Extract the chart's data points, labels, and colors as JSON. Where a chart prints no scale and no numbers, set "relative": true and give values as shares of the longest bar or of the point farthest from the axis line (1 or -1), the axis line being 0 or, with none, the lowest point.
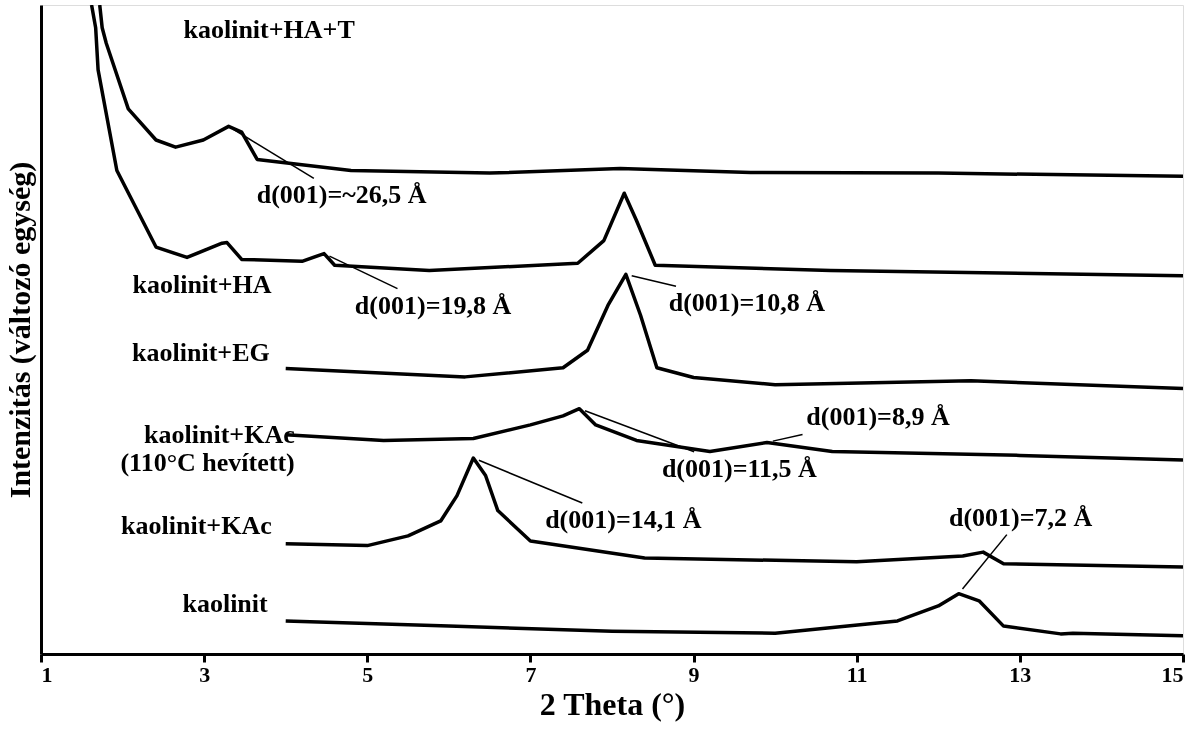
{
  "chart_data": {
    "type": "line",
    "relative": true,
    "xlabel": "2 Theta (°)",
    "ylabel": "Intenzitás (változó egység)",
    "xlim": [
      1,
      15
    ],
    "xticks": [
      1,
      3,
      5,
      7,
      9,
      11,
      13,
      15
    ],
    "tick_labels": "x",
    "grid": false,
    "marker": "none",
    "line_style": "solid",
    "series": [
      {
        "name": "kaolinit",
        "color": "#000000",
        "x": [
          4,
          6,
          8,
          10,
          11.5,
          12,
          12.25,
          12.5,
          12.8,
          13.5,
          13.65,
          15
        ],
        "values": [
          0.051,
          0.043,
          0.035,
          0.032,
          0.051,
          0.074,
          0.093,
          0.082,
          0.043,
          0.031,
          0.032,
          0.028
        ]
      },
      {
        "name": "kaolinit+KAc",
        "color": "#000000",
        "x": [
          4,
          5,
          5.5,
          5.9,
          6.1,
          6.3,
          6.45,
          6.6,
          7,
          8.4,
          11,
          12.3,
          12.55,
          12.8,
          15
        ],
        "values": [
          0.17,
          0.167,
          0.182,
          0.205,
          0.244,
          0.302,
          0.275,
          0.221,
          0.174,
          0.148,
          0.142,
          0.151,
          0.157,
          0.139,
          0.134
        ]
      },
      {
        "name": "kaolinit+KAc\n(110°C hevített)",
        "color": "#000000",
        "x": [
          4,
          5.2,
          6.3,
          7,
          7.4,
          7.6,
          7.8,
          8.3,
          9.2,
          9.9,
          10.7,
          13,
          15
        ],
        "values": [
          0.338,
          0.329,
          0.332,
          0.353,
          0.367,
          0.378,
          0.353,
          0.329,
          0.312,
          0.326,
          0.312,
          0.306,
          0.299
        ]
      },
      {
        "name": "kaolinit+EG",
        "color": "#000000",
        "x": [
          4,
          6.2,
          7.4,
          7.7,
          7.95,
          8.17,
          8.35,
          8.55,
          9,
          10,
          12.4,
          15
        ],
        "values": [
          0.44,
          0.427,
          0.441,
          0.468,
          0.537,
          0.585,
          0.522,
          0.441,
          0.426,
          0.415,
          0.421,
          0.409
        ]
      },
      {
        "name": "kaolinit+HA",
        "color": "#000000",
        "x": [
          1.62,
          1.67,
          1.7,
          1.93,
          2.41,
          2.79,
          3.22,
          3.28,
          3.46,
          4.2,
          4.47,
          4.6,
          5.76,
          7.58,
          7.9,
          8.15,
          8.3,
          8.53,
          10.68,
          15
        ],
        "values": [
          1.0,
          0.965,
          0.9,
          0.745,
          0.627,
          0.611,
          0.633,
          0.634,
          0.608,
          0.605,
          0.617,
          0.599,
          0.591,
          0.602,
          0.637,
          0.71,
          0.668,
          0.599,
          0.591,
          0.583
        ]
      },
      {
        "name": "kaolinit+HA+T",
        "color": "#000000",
        "x": [
          1.72,
          1.75,
          1.8,
          2.07,
          2.41,
          2.65,
          2.99,
          3.3,
          3.46,
          3.65,
          4.8,
          6.5,
          8.1,
          9.7,
          12,
          15
        ],
        "values": [
          1.0,
          0.965,
          0.941,
          0.84,
          0.792,
          0.781,
          0.792,
          0.813,
          0.804,
          0.762,
          0.745,
          0.741,
          0.748,
          0.742,
          0.741,
          0.736
        ]
      }
    ],
    "annotations": [
      {
        "text": "d(001)=~26,5 Å",
        "x": 3.3,
        "y": 0.813
      },
      {
        "text": "d(001)=19,8 Å",
        "x": 4.47,
        "y": 0.617
      },
      {
        "text": "d(001)=10,8 Å",
        "x": 8.17,
        "y": 0.585
      },
      {
        "text": "d(001)=8,9 Å",
        "x": 9.9,
        "y": 0.326
      },
      {
        "text": "d(001)=11,5 Å",
        "x": 7.6,
        "y": 0.378
      },
      {
        "text": "d(001)=14,1 Å",
        "x": 6.3,
        "y": 0.302
      },
      {
        "text": "d(001)=7,2 Å",
        "x": 12.25,
        "y": 0.093
      }
    ]
  }
}
